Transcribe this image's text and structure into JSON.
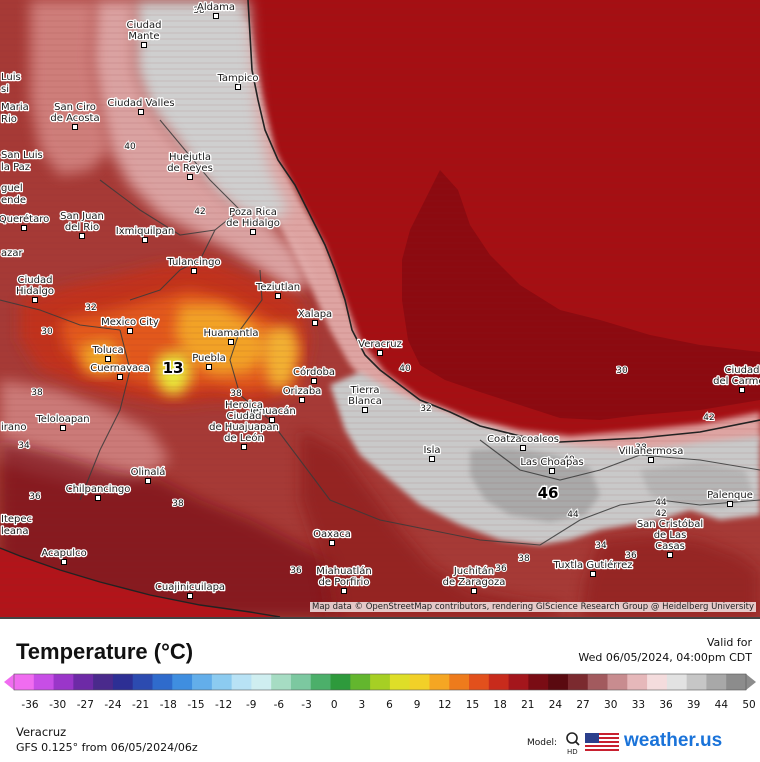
{
  "map": {
    "attribution": "Map data © OpenStreetMap contributors, rendering GIScience Research Group @ Heidelberg University",
    "cities": [
      {
        "name": "Ciudad Mante",
        "lines": [
          "Ciudad",
          "Mante"
        ]
      },
      {
        "name": "Aldama",
        "lines": [
          "Aldama"
        ]
      },
      {
        "name": "Tampico",
        "lines": [
          "Tampico"
        ]
      },
      {
        "name": "Ciudad Valles",
        "lines": [
          "Ciudad Valles"
        ]
      },
      {
        "name": "San Ciro de Acosta",
        "lines": [
          "San Ciro",
          "de Acosta"
        ]
      },
      {
        "name": "Huejutla de Reyes",
        "lines": [
          "Huejutla",
          "de Reyes"
        ]
      },
      {
        "name": "Poza Rica de Hidalgo",
        "lines": [
          "Poza Rica",
          "de Hidalgo"
        ]
      },
      {
        "name": "Querétaro",
        "lines": [
          "Querétaro"
        ]
      },
      {
        "name": "San Juan del Rio",
        "lines": [
          "San Juan",
          "del Rio"
        ]
      },
      {
        "name": "Ixmiquilpan",
        "lines": [
          "Ixmiquilpan"
        ]
      },
      {
        "name": "Tulancingo",
        "lines": [
          "Tulancingo"
        ]
      },
      {
        "name": "Teziutlan",
        "lines": [
          "Teziutlan"
        ]
      },
      {
        "name": "Ciudad Hidalgo",
        "lines": [
          "Ciudad",
          "Hidalgo"
        ]
      },
      {
        "name": "Mexico City",
        "lines": [
          "Mexico City"
        ]
      },
      {
        "name": "Xalapa",
        "lines": [
          "Xalapa"
        ]
      },
      {
        "name": "Huamantla",
        "lines": [
          "Huamantla"
        ]
      },
      {
        "name": "Veracruz",
        "lines": [
          "Veracruz"
        ]
      },
      {
        "name": "Toluca",
        "lines": [
          "Toluca"
        ]
      },
      {
        "name": "Puebla",
        "lines": [
          "Puebla"
        ]
      },
      {
        "name": "Cuernavaca",
        "lines": [
          "Cuernavaca"
        ]
      },
      {
        "name": "Córdoba",
        "lines": [
          "Córdoba"
        ]
      },
      {
        "name": "Orizaba",
        "lines": [
          "Orizaba"
        ]
      },
      {
        "name": "Tierra Blanca",
        "lines": [
          "Tierra",
          "Blanca"
        ]
      },
      {
        "name": "Tehuacán",
        "lines": [
          "Tehuacán"
        ]
      },
      {
        "name": "Teloloapan",
        "lines": [
          "Teloloapan"
        ]
      },
      {
        "name": "Heroica Ciudad de Huajuapan de León",
        "lines": [
          "Heroica",
          "Ciudad",
          "de Huajuapan",
          "de León"
        ]
      },
      {
        "name": "Isla",
        "lines": [
          "Isla"
        ]
      },
      {
        "name": "Coatzacoalcos",
        "lines": [
          "Coatzacoalcos"
        ]
      },
      {
        "name": "Las Choapas",
        "lines": [
          "Las Choapas"
        ]
      },
      {
        "name": "Villahermosa",
        "lines": [
          "Villahermosa"
        ]
      },
      {
        "name": "Ciudad del Carmen",
        "lines": [
          "Ciudad",
          "del Carmen"
        ]
      },
      {
        "name": "Olinalá",
        "lines": [
          "Olinalá"
        ]
      },
      {
        "name": "Chilpancingo",
        "lines": [
          "Chilpancingo"
        ]
      },
      {
        "name": "Palenque",
        "lines": [
          "Palenque"
        ]
      },
      {
        "name": "Oaxaca",
        "lines": [
          "Oaxaca"
        ]
      },
      {
        "name": "Acapulco",
        "lines": [
          "Acapulco"
        ]
      },
      {
        "name": "San Cristóbal de Las Casas",
        "lines": [
          "San Cristóbal",
          "de Las",
          "Casas"
        ]
      },
      {
        "name": "Tuxtla Gutiérrez",
        "lines": [
          "Tuxtla Gutiérrez"
        ]
      },
      {
        "name": "Cuajinicuilapa",
        "lines": [
          "Cuajinicuilapa"
        ]
      },
      {
        "name": "Miahuatlán de Porfirio",
        "lines": [
          "Miahuatlán",
          "de Porfirio"
        ]
      },
      {
        "name": "Juchitán de Zaragoza",
        "lines": [
          "Juchitán",
          "de Zaragoza"
        ]
      }
    ],
    "edge_labels": [
      "Luis",
      "si",
      "Maria",
      "Rio",
      "San Luis",
      "la Paz",
      "guel",
      "ende",
      "azar",
      "irano",
      "Itepec",
      "leana"
    ],
    "contour_labels": [
      "38",
      "40",
      "42",
      "40",
      "38",
      "36",
      "38",
      "30",
      "32",
      "40",
      "42",
      "44",
      "44",
      "42",
      "38",
      "36",
      "34",
      "38",
      "36",
      "38",
      "36",
      "34",
      "32",
      "30"
    ],
    "extreme_labels": [
      {
        "value": "13",
        "kind": "min"
      },
      {
        "value": "46",
        "kind": "max"
      }
    ]
  },
  "legend": {
    "title": "Temperature (°C)",
    "valid_label": "Valid for",
    "valid_time": "Wed 06/05/2024, 04:00pm CDT",
    "ticks": [
      "-36",
      "-30",
      "-27",
      "-24",
      "-21",
      "-18",
      "-15",
      "-12",
      "-9",
      "-6",
      "-3",
      "0",
      "3",
      "6",
      "9",
      "12",
      "15",
      "18",
      "21",
      "24",
      "27",
      "30",
      "33",
      "36",
      "39",
      "44",
      "50"
    ],
    "colors": [
      "#f06cf0",
      "#c74ee6",
      "#9a36c9",
      "#6d2aa6",
      "#4a2a8c",
      "#2d2f94",
      "#2c4bb0",
      "#2f6bcc",
      "#3f8ee0",
      "#63aeea",
      "#8ccbf0",
      "#b8e2f5",
      "#cfeef0",
      "#a6dcc3",
      "#7cc8a0",
      "#4caf6a",
      "#2e9a3c",
      "#63b62e",
      "#a6cf24",
      "#dede28",
      "#f2d028",
      "#f5a623",
      "#ee7b1c",
      "#e2501c",
      "#c82b1c",
      "#a4161c",
      "#7a0c14",
      "#5a0a10",
      "#7b2a2f",
      "#a25a5e",
      "#c88c8f",
      "#e6b8ba",
      "#f4dcdd",
      "#e2e2e2",
      "#c6c6c6",
      "#a8a8a8",
      "#8c8c8c"
    ],
    "location": "Veracruz",
    "model_run": "GFS 0.125° from  06/05/2024/06z",
    "model_label": "Model:",
    "brand": "weather.us"
  }
}
